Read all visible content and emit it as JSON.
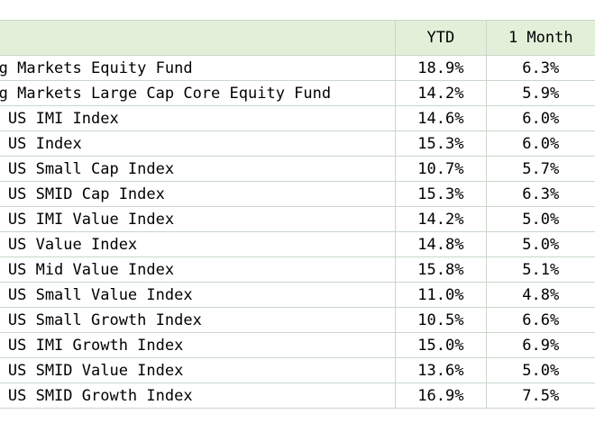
{
  "table": {
    "headers": {
      "name": "",
      "ytd": "YTD",
      "month": "1 Month"
    },
    "rows": [
      {
        "name": "Emerging Markets Equity Fund",
        "ytd": "18.9%",
        "month": "6.3%"
      },
      {
        "name": "Emerging Markets Large Cap Core Equity Fund",
        "ytd": "14.2%",
        "month": "5.9%"
      },
      {
        "name": "Russell US IMI Index",
        "ytd": "14.6%",
        "month": "6.0%"
      },
      {
        "name": "Russell US Index",
        "ytd": "15.3%",
        "month": "6.0%"
      },
      {
        "name": "Russell US Small Cap Index",
        "ytd": "10.7%",
        "month": "5.7%"
      },
      {
        "name": "Russell US SMID Cap Index",
        "ytd": "15.3%",
        "month": "6.3%"
      },
      {
        "name": "Russell US IMI Value Index",
        "ytd": "14.2%",
        "month": "5.0%"
      },
      {
        "name": "Russell US Value Index",
        "ytd": "14.8%",
        "month": "5.0%"
      },
      {
        "name": "Russell US Mid Value Index",
        "ytd": "15.8%",
        "month": "5.1%"
      },
      {
        "name": "Russell US Small Value Index",
        "ytd": "11.0%",
        "month": "4.8%"
      },
      {
        "name": "Russell US Small Growth Index",
        "ytd": "10.5%",
        "month": "6.6%"
      },
      {
        "name": "Russell US IMI Growth Index",
        "ytd": "15.0%",
        "month": "6.9%"
      },
      {
        "name": "Russell US SMID Value Index",
        "ytd": "13.6%",
        "month": "5.0%"
      },
      {
        "name": "Russell US SMID Growth Index",
        "ytd": "16.9%",
        "month": "7.5%"
      }
    ]
  }
}
